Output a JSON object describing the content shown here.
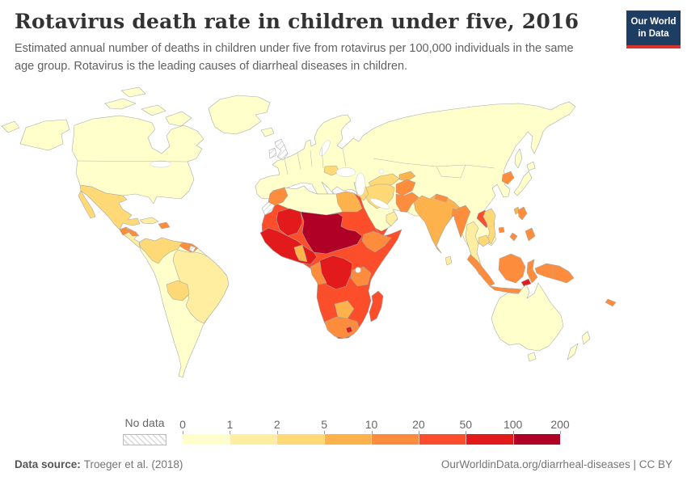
{
  "header": {
    "title": "Rotavirus death rate in children under five, 2016",
    "subtitle": "Estimated annual number of deaths in children under five from rotavirus per 100,000 individuals in the same age group. Rotavirus is the leading causes of diarrheal diseases in children.",
    "logo": {
      "line1": "Our World",
      "line2": "in Data"
    }
  },
  "colors": {
    "logo_bg": "#1d3d63",
    "logo_accent": "#d7352f",
    "title_text": "#333333",
    "subtitle_text": "#616161",
    "country_border": "#a6a6a6"
  },
  "legend": {
    "no_data_label": "No data",
    "tick_labels": [
      "0",
      "1",
      "2",
      "5",
      "10",
      "20",
      "50",
      "100",
      "200"
    ]
  },
  "chart_data": {
    "type": "choropleth",
    "title": "Rotavirus death rate in children under five, 2016",
    "year": "2016",
    "unit": "deaths per 100,000 children under five",
    "scale_ticks": [
      0,
      1,
      2,
      5,
      10,
      20,
      50,
      100,
      200
    ],
    "legend_position": "bottom",
    "no_data_style": "hatched",
    "bins": [
      {
        "range": "0-1",
        "color": "#ffffcc"
      },
      {
        "range": "1-2",
        "color": "#ffeda0"
      },
      {
        "range": "2-5",
        "color": "#fed976"
      },
      {
        "range": "5-10",
        "color": "#feb24c"
      },
      {
        "range": "10-20",
        "color": "#fd8d3c"
      },
      {
        "range": "20-50",
        "color": "#fc4e2a"
      },
      {
        "range": "50-100",
        "color": "#e31a1c"
      },
      {
        "range": "100-200",
        "color": "#b10026"
      }
    ],
    "regions": {
      "chukotka-west": 0,
      "alaska": 0,
      "canada-usa": 0,
      "arctic-islands": 0,
      "greenland": 0,
      "iceland": 0,
      "mexico": 2,
      "central-america": 1,
      "guatemala": 4,
      "honduras": 4,
      "cuba": 1,
      "hispaniola": 4,
      "south-america": 0,
      "colombia-venezuela": 2,
      "guyanas": 4,
      "suriname": "no-data",
      "brazil": 1,
      "bolivia": 2,
      "eurasia": 0,
      "uk": "no-data",
      "ireland": "no-data",
      "romania": 2,
      "central-asia": 2,
      "kyrgyz-tajik": 3,
      "iran": 2,
      "iraq": 2,
      "syria": 1,
      "afghanistan": 4,
      "pakistan": 4,
      "india": 3,
      "nepal": 4,
      "bangladesh": 4,
      "sri-lanka": 1,
      "myanmar": 4,
      "thailand": 1,
      "laos": 5,
      "vietnam": 2,
      "cambodia": 2,
      "north-korea": 4,
      "japan": 0,
      "sakhalin": 0,
      "taiwan": 3,
      "hainan": 4,
      "philippines": 4,
      "yemen": 5,
      "oman": 1,
      "sumatra": 4,
      "java": 4,
      "borneo": 4,
      "sulawesi": 4,
      "new-guinea": 4,
      "timor": 6,
      "australia": 0,
      "tasmania": 0,
      "new-zealand": 0,
      "new-caledonia": 4,
      "africa": 5,
      "north-africa": 0,
      "egypt": 3,
      "morocco": 4,
      "western-sahara": "no-data",
      "mali": 6,
      "sahel": 7,
      "west-africa": 6,
      "ghana": 3,
      "ethiopia": 4,
      "drc": 6,
      "gabon-congo": 4,
      "tanzania": 4,
      "botswana": 3,
      "south-africa": 4,
      "lesotho": 6,
      "madagascar": 5
    }
  },
  "footer": {
    "source_label": "Data source:",
    "source_value": "Troeger et al. (2018)",
    "credit": "OurWorldinData.org/diarrheal-diseases | CC BY"
  }
}
